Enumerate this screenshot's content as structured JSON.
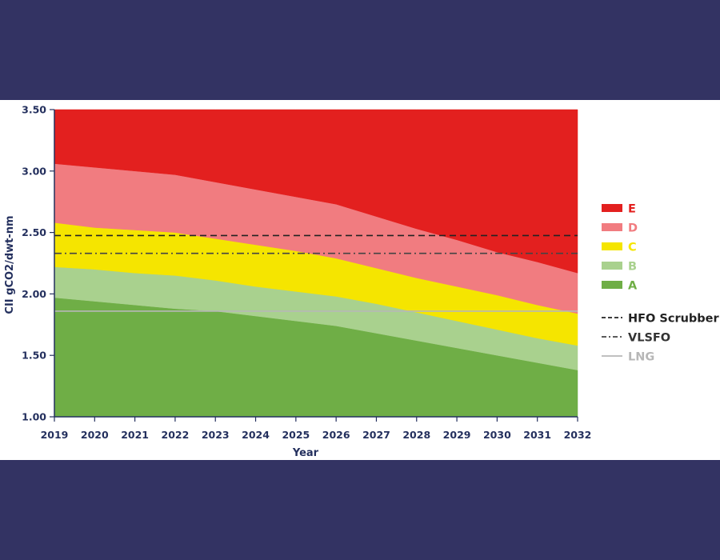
{
  "chart_data": {
    "type": "area",
    "xlabel": "Year",
    "ylabel": "CII gCO2/dwt-nm",
    "x": [
      2019,
      2020,
      2021,
      2022,
      2023,
      2024,
      2025,
      2026,
      2027,
      2028,
      2029,
      2030,
      2031,
      2032
    ],
    "ylim": [
      1.0,
      3.5
    ],
    "yticks": [
      "1.00",
      "1.50",
      "2.00",
      "2.50",
      "3.00",
      "3.50"
    ],
    "bands": [
      {
        "name": "A",
        "color": "#6fae46",
        "upper": [
          1.97,
          1.94,
          1.91,
          1.88,
          1.86,
          1.82,
          1.78,
          1.74,
          1.68,
          1.62,
          1.56,
          1.5,
          1.44,
          1.38
        ]
      },
      {
        "name": "B",
        "color": "#a9d18e",
        "upper": [
          2.22,
          2.2,
          2.17,
          2.15,
          2.11,
          2.06,
          2.02,
          1.98,
          1.92,
          1.85,
          1.78,
          1.71,
          1.64,
          1.58
        ]
      },
      {
        "name": "C",
        "color": "#f5e500",
        "upper": [
          2.58,
          2.54,
          2.52,
          2.5,
          2.45,
          2.4,
          2.35,
          2.29,
          2.21,
          2.13,
          2.06,
          1.99,
          1.91,
          1.84
        ]
      },
      {
        "name": "D",
        "color": "#f17c80",
        "upper": [
          3.06,
          3.03,
          3.0,
          2.97,
          2.91,
          2.85,
          2.79,
          2.73,
          2.63,
          2.53,
          2.44,
          2.34,
          2.26,
          2.17
        ]
      },
      {
        "name": "E",
        "color": "#e3201f",
        "upper": [
          3.5,
          3.5,
          3.5,
          3.5,
          3.5,
          3.5,
          3.5,
          3.5,
          3.5,
          3.5,
          3.5,
          3.5,
          3.5,
          3.5
        ]
      }
    ],
    "reference_lines": [
      {
        "name": "HFO Scrubber",
        "value": 2.475,
        "color": "#222222",
        "style": "dashed"
      },
      {
        "name": "VLSFO",
        "value": 2.33,
        "color": "#444444",
        "style": "dashdot"
      },
      {
        "name": "LNG",
        "value": 1.86,
        "color": "#b7b7b7",
        "style": "solid"
      }
    ],
    "legend_position": "right"
  }
}
